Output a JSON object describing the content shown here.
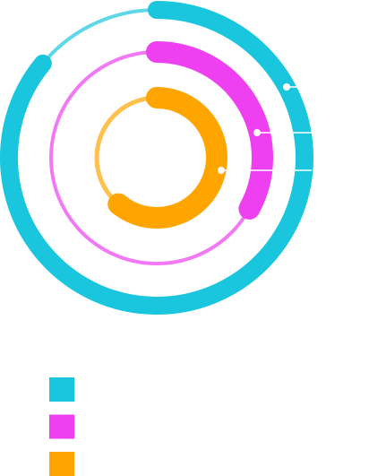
{
  "chart_data": {
    "type": "radialBar",
    "ylim": [
      0,
      100
    ],
    "series": [
      {
        "color": "#19c6dd",
        "values": [
          86
        ]
      },
      {
        "color": "#ee3ff0",
        "values": [
          33
        ]
      },
      {
        "color": "#ffa500",
        "values": [
          61
        ]
      }
    ]
  }
}
